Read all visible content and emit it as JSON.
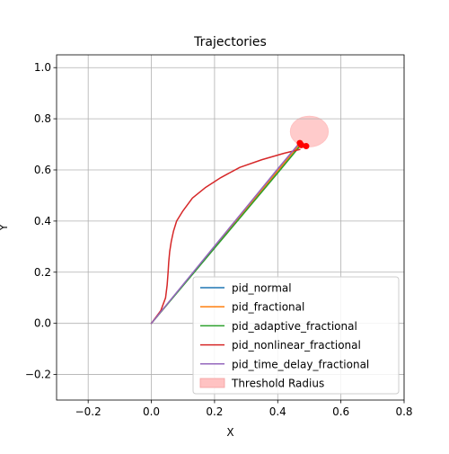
{
  "chart_data": {
    "type": "line",
    "title": "Trajectories",
    "xlabel": "X",
    "ylabel": "Y",
    "xlim": [
      -0.3,
      0.8
    ],
    "ylim": [
      -0.3,
      1.05
    ],
    "xticks": [
      -0.2,
      0.0,
      0.2,
      0.4,
      0.6,
      0.8
    ],
    "yticks": [
      -0.2,
      0.0,
      0.2,
      0.4,
      0.6,
      0.8,
      1.0
    ],
    "xtick_labels": [
      "−0.2",
      "0.0",
      "0.2",
      "0.4",
      "0.6",
      "0.8"
    ],
    "ytick_labels": [
      "−0.2",
      "0.0",
      "0.2",
      "0.4",
      "0.6",
      "0.8",
      "1.0"
    ],
    "grid": true,
    "legend_position": "lower-right",
    "series": [
      {
        "name": "pid_normal",
        "color": "#1f77b4",
        "x": [
          0.0,
          0.1,
          0.2,
          0.3,
          0.4,
          0.47
        ],
        "y": [
          0.0,
          0.149,
          0.298,
          0.447,
          0.596,
          0.7
        ]
      },
      {
        "name": "pid_fractional",
        "color": "#ff7f0e",
        "x": [
          0.0,
          0.1,
          0.2,
          0.3,
          0.4,
          0.47
        ],
        "y": [
          0.0,
          0.149,
          0.298,
          0.447,
          0.596,
          0.7
        ]
      },
      {
        "name": "pid_adaptive_fractional",
        "color": "#2ca02c",
        "x": [
          0.0,
          0.1,
          0.2,
          0.3,
          0.4,
          0.475
        ],
        "y": [
          0.0,
          0.147,
          0.294,
          0.441,
          0.588,
          0.7
        ]
      },
      {
        "name": "pid_nonlinear_fractional",
        "color": "#d62728",
        "x": [
          0.0,
          0.03,
          0.045,
          0.05,
          0.053,
          0.055,
          0.058,
          0.063,
          0.07,
          0.08,
          0.1,
          0.13,
          0.17,
          0.22,
          0.28,
          0.35,
          0.42,
          0.47
        ],
        "y": [
          0.0,
          0.05,
          0.1,
          0.15,
          0.2,
          0.24,
          0.28,
          0.32,
          0.36,
          0.4,
          0.44,
          0.49,
          0.53,
          0.57,
          0.61,
          0.64,
          0.665,
          0.68
        ]
      },
      {
        "name": "pid_time_delay_fractional",
        "color": "#9467bd",
        "x": [
          0.0,
          0.1,
          0.2,
          0.3,
          0.4,
          0.465
        ],
        "y": [
          0.0,
          0.151,
          0.302,
          0.453,
          0.604,
          0.7
        ]
      }
    ],
    "markers": {
      "color": "#ff0000",
      "x": [
        0.47,
        0.475,
        0.49
      ],
      "y": [
        0.705,
        0.697,
        0.693
      ]
    },
    "threshold": {
      "name": "Threshold Radius",
      "center_x": 0.5,
      "center_y": 0.75,
      "radius": 0.06,
      "color": "#ffc2c2"
    }
  }
}
